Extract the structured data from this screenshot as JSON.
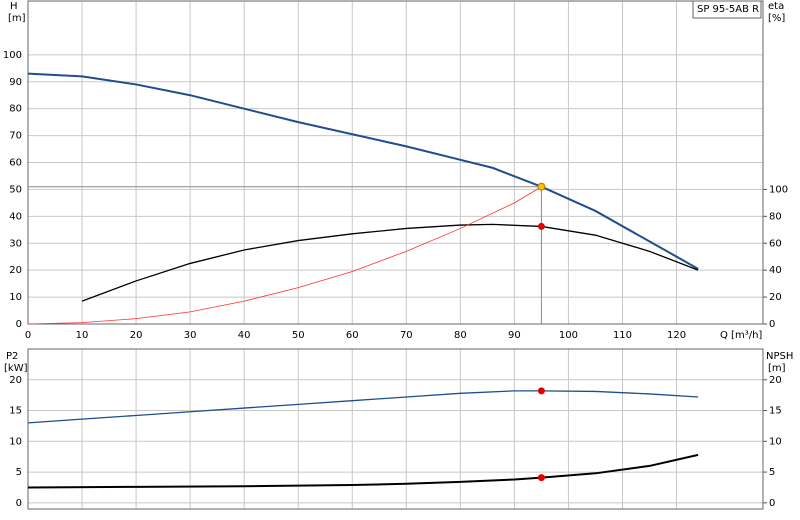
{
  "chart_data": [
    {
      "type": "line",
      "title": "SP 95-5AB R",
      "y_label": "H",
      "y_unit": "[m]",
      "y2_label": "eta",
      "y2_unit": "[%]",
      "x_label": "Q [m³/h]",
      "xlim": [
        0,
        136
      ],
      "xticks": [
        0,
        10,
        20,
        30,
        40,
        50,
        60,
        70,
        80,
        90,
        100,
        110,
        120
      ],
      "ylim": [
        0,
        120
      ],
      "yticks": [
        0,
        10,
        20,
        30,
        40,
        50,
        60,
        70,
        80,
        90,
        100
      ],
      "y2lim": [
        0,
        240
      ],
      "y2ticks": [
        0,
        20,
        40,
        60,
        80,
        100
      ],
      "grid": true,
      "series": [
        {
          "name": "H",
          "color": "#1f4e8c",
          "x": [
            0,
            10,
            20,
            30,
            40,
            50,
            60,
            70,
            80,
            86,
            95,
            105,
            124
          ],
          "values": [
            93,
            92,
            89,
            85,
            80,
            75,
            70.5,
            66,
            61,
            58,
            51,
            42,
            20.5
          ]
        },
        {
          "name": "eta",
          "color": "#000000",
          "axis": "y2",
          "x": [
            10,
            20,
            30,
            40,
            50,
            60,
            70,
            80,
            86,
            95,
            105,
            115,
            124
          ],
          "values": [
            17,
            32,
            45,
            55,
            62,
            67,
            71,
            73.5,
            74,
            72.5,
            66,
            54,
            40
          ]
        },
        {
          "name": "system",
          "color": "#ff3030",
          "x": [
            0,
            10,
            20,
            30,
            40,
            50,
            60,
            70,
            80,
            90,
            95
          ],
          "values": [
            0,
            0.5,
            2,
            4.5,
            8.5,
            13.5,
            19.5,
            27,
            35.5,
            45,
            51
          ]
        }
      ],
      "markers": [
        {
          "x": 95,
          "y": 51,
          "color": "#f5c400"
        },
        {
          "x": 95,
          "y": 72.5,
          "axis": "y2",
          "color": "#e00000"
        }
      ]
    },
    {
      "type": "line",
      "y_label": "P2",
      "y_unit": "[kW]",
      "y2_label": "NPSH",
      "y2_unit": "[m]",
      "xlim": [
        0,
        136
      ],
      "xticks": [
        0,
        10,
        20,
        30,
        40,
        50,
        60,
        70,
        80,
        90,
        100,
        110,
        120
      ],
      "xtick_labels": false,
      "ylim": [
        -1,
        25
      ],
      "yticks": [
        0,
        5,
        10,
        15,
        20
      ],
      "y2lim": [
        -1,
        25
      ],
      "y2ticks": [
        0,
        5,
        10,
        15,
        20
      ],
      "grid": true,
      "series": [
        {
          "name": "P2",
          "color": "#1f4e8c",
          "x": [
            0,
            10,
            20,
            30,
            40,
            50,
            60,
            70,
            80,
            90,
            95,
            105,
            115,
            124
          ],
          "values": [
            13,
            13.6,
            14.2,
            14.8,
            15.4,
            16,
            16.6,
            17.2,
            17.8,
            18.2,
            18.2,
            18.1,
            17.7,
            17.2
          ]
        },
        {
          "name": "NPSH",
          "color": "#000000",
          "axis": "y2",
          "x": [
            0,
            20,
            40,
            60,
            70,
            80,
            90,
            95,
            105,
            115,
            124
          ],
          "values": [
            2.5,
            2.6,
            2.7,
            2.9,
            3.1,
            3.4,
            3.8,
            4.1,
            4.8,
            6,
            7.8
          ]
        }
      ],
      "markers": [
        {
          "x": 95,
          "y": 18.2,
          "color": "#e00000"
        },
        {
          "x": 95,
          "y": 4.1,
          "axis": "y2",
          "color": "#e00000"
        }
      ]
    }
  ]
}
